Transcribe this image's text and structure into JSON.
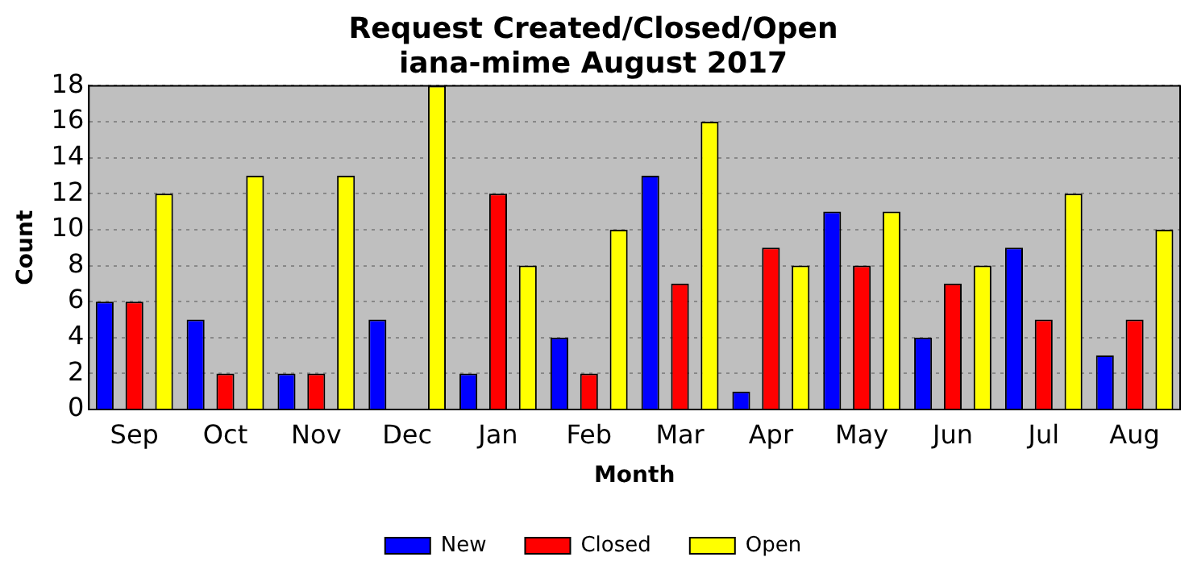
{
  "chart_data": {
    "type": "bar",
    "title": "Request Created/Closed/Open",
    "subtitle": "iana-mime August 2017",
    "xlabel": "Month",
    "ylabel": "Count",
    "categories": [
      "Sep",
      "Oct",
      "Nov",
      "Dec",
      "Jan",
      "Feb",
      "Mar",
      "Apr",
      "May",
      "Jun",
      "Jul",
      "Aug"
    ],
    "series": [
      {
        "name": "New",
        "color": "#0000ff",
        "values": [
          6,
          5,
          2,
          5,
          2,
          4,
          13,
          1,
          11,
          4,
          9,
          3
        ]
      },
      {
        "name": "Closed",
        "color": "#ff0000",
        "values": [
          6,
          2,
          2,
          0,
          12,
          2,
          7,
          9,
          8,
          7,
          5,
          5
        ]
      },
      {
        "name": "Open",
        "color": "#ffff00",
        "values": [
          12,
          13,
          13,
          18,
          8,
          10,
          16,
          8,
          11,
          8,
          12,
          10
        ]
      }
    ],
    "ylim": [
      0,
      18
    ],
    "yticks": [
      0,
      2,
      4,
      6,
      8,
      10,
      12,
      14,
      16,
      18
    ],
    "grid": "y",
    "legend": "bottom"
  }
}
